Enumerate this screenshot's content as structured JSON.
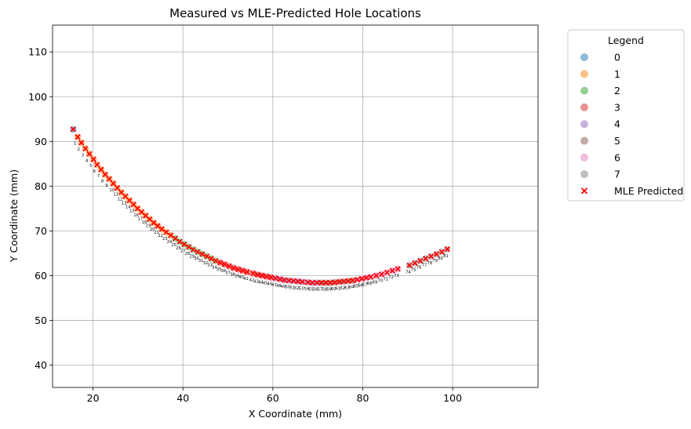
{
  "chart_data": {
    "type": "scatter",
    "title": "Measured vs MLE-Predicted Hole Locations",
    "xlabel": "X Coordinate (mm)",
    "ylabel": "Y Coordinate (mm)",
    "xlim": [
      11,
      119
    ],
    "ylim": [
      35,
      116
    ],
    "xticks": [
      20,
      40,
      60,
      80,
      100
    ],
    "yticks": [
      40,
      50,
      60,
      70,
      80,
      90,
      100,
      110
    ],
    "grid": true,
    "legend_title": "Legend",
    "legend_placement": "outside-upper-right",
    "measured_groups": [
      {
        "label": "0",
        "color": "#1f77b4"
      },
      {
        "label": "1",
        "color": "#ff7f0e"
      },
      {
        "label": "2",
        "color": "#2ca02c"
      },
      {
        "label": "3",
        "color": "#d62728"
      },
      {
        "label": "4",
        "color": "#9467bd"
      },
      {
        "label": "5",
        "color": "#8c564b"
      },
      {
        "label": "6",
        "color": "#e377c2"
      },
      {
        "label": "7",
        "color": "#7f7f7f"
      }
    ],
    "predicted_series": {
      "label": "MLE Predicted",
      "color": "#ff0000",
      "marker": "x"
    },
    "points": [
      {
        "id": "0",
        "x": 15.6,
        "y": 92.7,
        "group": 0
      },
      {
        "id": "1",
        "x": 16.6,
        "y": 91.0,
        "group": 1
      },
      {
        "id": "2",
        "x": 17.4,
        "y": 89.7,
        "group": 1
      },
      {
        "id": "3",
        "x": 18.3,
        "y": 88.4,
        "group": 1
      },
      {
        "id": "4",
        "x": 19.2,
        "y": 87.2,
        "group": 1
      },
      {
        "id": "5",
        "x": 20.1,
        "y": 86.0,
        "group": 1
      },
      {
        "id": "6",
        "x": 20.9,
        "y": 84.8,
        "group": 1
      },
      {
        "id": "7",
        "x": 21.8,
        "y": 83.7,
        "group": 1
      },
      {
        "id": "8",
        "x": 22.7,
        "y": 82.6,
        "group": 1
      },
      {
        "id": "9",
        "x": 23.6,
        "y": 81.6,
        "group": 1
      },
      {
        "id": "10",
        "x": 24.5,
        "y": 80.6,
        "group": 1
      },
      {
        "id": "11",
        "x": 25.4,
        "y": 79.6,
        "group": 1
      },
      {
        "id": "12",
        "x": 26.3,
        "y": 78.6,
        "group": 1
      },
      {
        "id": "13",
        "x": 27.2,
        "y": 77.7,
        "group": 1
      },
      {
        "id": "14",
        "x": 28.1,
        "y": 76.8,
        "group": 1
      },
      {
        "id": "15",
        "x": 29.0,
        "y": 75.9,
        "group": 1
      },
      {
        "id": "16",
        "x": 29.9,
        "y": 75.0,
        "group": 1
      },
      {
        "id": "17",
        "x": 30.8,
        "y": 74.2,
        "group": 1
      },
      {
        "id": "18",
        "x": 31.7,
        "y": 73.4,
        "group": 1
      },
      {
        "id": "19",
        "x": 32.6,
        "y": 72.6,
        "group": 1
      },
      {
        "id": "20",
        "x": 33.5,
        "y": 71.8,
        "group": 1
      },
      {
        "id": "21",
        "x": 34.4,
        "y": 71.1,
        "group": 1
      },
      {
        "id": "22",
        "x": 35.3,
        "y": 70.4,
        "group": 1
      },
      {
        "id": "23",
        "x": 36.3,
        "y": 69.7,
        "group": 1
      },
      {
        "id": "24",
        "x": 37.3,
        "y": 69.0,
        "group": 1
      },
      {
        "id": "25",
        "x": 38.3,
        "y": 68.3,
        "group": 2
      },
      {
        "id": "26",
        "x": 39.3,
        "y": 67.6,
        "group": 2
      },
      {
        "id": "27",
        "x": 40.3,
        "y": 67.0,
        "group": 2
      },
      {
        "id": "28",
        "x": 41.3,
        "y": 66.4,
        "group": 2
      },
      {
        "id": "29",
        "x": 42.3,
        "y": 65.8,
        "group": 2
      },
      {
        "id": "30",
        "x": 43.3,
        "y": 65.3,
        "group": 2
      },
      {
        "id": "31",
        "x": 44.3,
        "y": 64.8,
        "group": 2
      },
      {
        "id": "32",
        "x": 45.3,
        "y": 64.3,
        "group": 2
      },
      {
        "id": "33",
        "x": 46.3,
        "y": 63.8,
        "group": 2
      },
      {
        "id": "34",
        "x": 47.3,
        "y": 63.3,
        "group": 2
      },
      {
        "id": "35",
        "x": 48.3,
        "y": 62.9,
        "group": 3
      },
      {
        "id": "36",
        "x": 49.3,
        "y": 62.5,
        "group": 3
      },
      {
        "id": "37",
        "x": 50.3,
        "y": 62.1,
        "group": 3
      },
      {
        "id": "38",
        "x": 51.3,
        "y": 61.7,
        "group": 3
      },
      {
        "id": "39",
        "x": 52.3,
        "y": 61.4,
        "group": 3
      },
      {
        "id": "40",
        "x": 53.3,
        "y": 61.1,
        "group": 3
      },
      {
        "id": "41",
        "x": 54.3,
        "y": 60.8,
        "group": 3
      },
      {
        "id": "42",
        "x": 55.6,
        "y": 60.5,
        "group": 3
      },
      {
        "id": "43",
        "x": 56.6,
        "y": 60.2,
        "group": 3
      },
      {
        "id": "44",
        "x": 57.6,
        "y": 60.0,
        "group": 3
      },
      {
        "id": "45",
        "x": 58.6,
        "y": 59.8,
        "group": 3
      },
      {
        "id": "46",
        "x": 59.6,
        "y": 59.6,
        "group": 3
      },
      {
        "id": "47",
        "x": 60.6,
        "y": 59.4,
        "group": 4
      },
      {
        "id": "48",
        "x": 61.6,
        "y": 59.2,
        "group": 4
      },
      {
        "id": "49",
        "x": 62.6,
        "y": 59.0,
        "group": 4
      },
      {
        "id": "50",
        "x": 63.6,
        "y": 58.9,
        "group": 4
      },
      {
        "id": "51",
        "x": 64.6,
        "y": 58.8,
        "group": 4
      },
      {
        "id": "52",
        "x": 65.6,
        "y": 58.7,
        "group": 4
      },
      {
        "id": "53",
        "x": 66.6,
        "y": 58.6,
        "group": 4
      },
      {
        "id": "54",
        "x": 67.8,
        "y": 58.5,
        "group": 4
      },
      {
        "id": "55",
        "x": 68.8,
        "y": 58.4,
        "group": 4
      },
      {
        "id": "56",
        "x": 69.8,
        "y": 58.4,
        "group": 4
      },
      {
        "id": "57",
        "x": 70.8,
        "y": 58.4,
        "group": 5
      },
      {
        "id": "58",
        "x": 71.8,
        "y": 58.4,
        "group": 5
      },
      {
        "id": "59",
        "x": 72.8,
        "y": 58.4,
        "group": 5
      },
      {
        "id": "60",
        "x": 73.8,
        "y": 58.5,
        "group": 5
      },
      {
        "id": "61",
        "x": 74.8,
        "y": 58.6,
        "group": 5
      },
      {
        "id": "62",
        "x": 75.8,
        "y": 58.7,
        "group": 5
      },
      {
        "id": "63",
        "x": 76.8,
        "y": 58.8,
        "group": 5
      },
      {
        "id": "64",
        "x": 77.8,
        "y": 58.9,
        "group": 5
      },
      {
        "id": "65",
        "x": 78.8,
        "y": 59.1,
        "group": 6
      },
      {
        "id": "66",
        "x": 79.8,
        "y": 59.3,
        "group": 6
      },
      {
        "id": "67",
        "x": 80.8,
        "y": 59.5,
        "group": 6
      },
      {
        "id": "68",
        "x": 81.8,
        "y": 59.7,
        "group": 6
      },
      {
        "id": "69",
        "x": 83.0,
        "y": 60.0,
        "group": 6
      },
      {
        "id": "70",
        "x": 84.2,
        "y": 60.3,
        "group": 6
      },
      {
        "id": "71",
        "x": 85.4,
        "y": 60.7,
        "group": 6
      },
      {
        "id": "72",
        "x": 86.6,
        "y": 61.1,
        "group": 6
      },
      {
        "id": "73",
        "x": 87.8,
        "y": 61.5,
        "group": 6
      },
      {
        "id": "74",
        "x": 90.4,
        "y": 62.3,
        "group": 7
      },
      {
        "id": "75",
        "x": 91.6,
        "y": 62.8,
        "group": 7
      },
      {
        "id": "76",
        "x": 92.8,
        "y": 63.3,
        "group": 7
      },
      {
        "id": "77",
        "x": 94.0,
        "y": 63.8,
        "group": 7
      },
      {
        "id": "78",
        "x": 95.2,
        "y": 64.3,
        "group": 7
      },
      {
        "id": "79",
        "x": 96.4,
        "y": 64.8,
        "group": 7
      },
      {
        "id": "80",
        "x": 97.6,
        "y": 65.3,
        "group": 7
      },
      {
        "id": "81",
        "x": 98.8,
        "y": 65.9,
        "group": 7
      }
    ],
    "point_labels": [
      "1",
      "2",
      "3",
      "4",
      "5",
      "6",
      "7",
      "8",
      "9",
      "10",
      "11",
      "12",
      "13",
      "14",
      "15",
      "16",
      "17",
      "18",
      "19",
      "20",
      "21",
      "22",
      "23",
      "24",
      "25",
      "26",
      "27",
      "28",
      "29",
      "30",
      "31",
      "32",
      "33",
      "34",
      "35",
      "36",
      "37",
      "38",
      "39",
      "40",
      "41",
      "42",
      "43",
      "44",
      "45",
      "46",
      "47",
      "48",
      "49",
      "50",
      "51",
      "52",
      "53",
      "54",
      "55",
      "56",
      "57",
      "58",
      "59",
      "60",
      "61",
      "62",
      "63",
      "64",
      "65",
      "66",
      "67",
      "68",
      "69",
      "70",
      "71",
      "72",
      "73",
      "74",
      "75",
      "76",
      "77",
      "78",
      "79",
      "80",
      "81"
    ]
  }
}
